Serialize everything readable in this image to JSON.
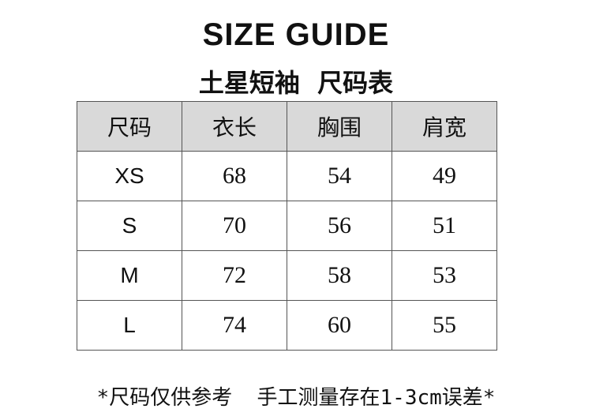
{
  "title": "SIZE GUIDE",
  "subtitle": "土星短袖  尺码表",
  "table": {
    "headers": [
      "尺码",
      "衣长",
      "胸围",
      "肩宽"
    ],
    "rows": [
      [
        "XS",
        "68",
        "54",
        "49"
      ],
      [
        "S",
        "70",
        "56",
        "51"
      ],
      [
        "M",
        "72",
        "58",
        "53"
      ],
      [
        "L",
        "74",
        "60",
        "55"
      ]
    ]
  },
  "note": "*尺码仅供参考  手工测量存在1-3cm误差*",
  "colors": {
    "header_bg": "#d9d9d9",
    "border": "#555555"
  }
}
